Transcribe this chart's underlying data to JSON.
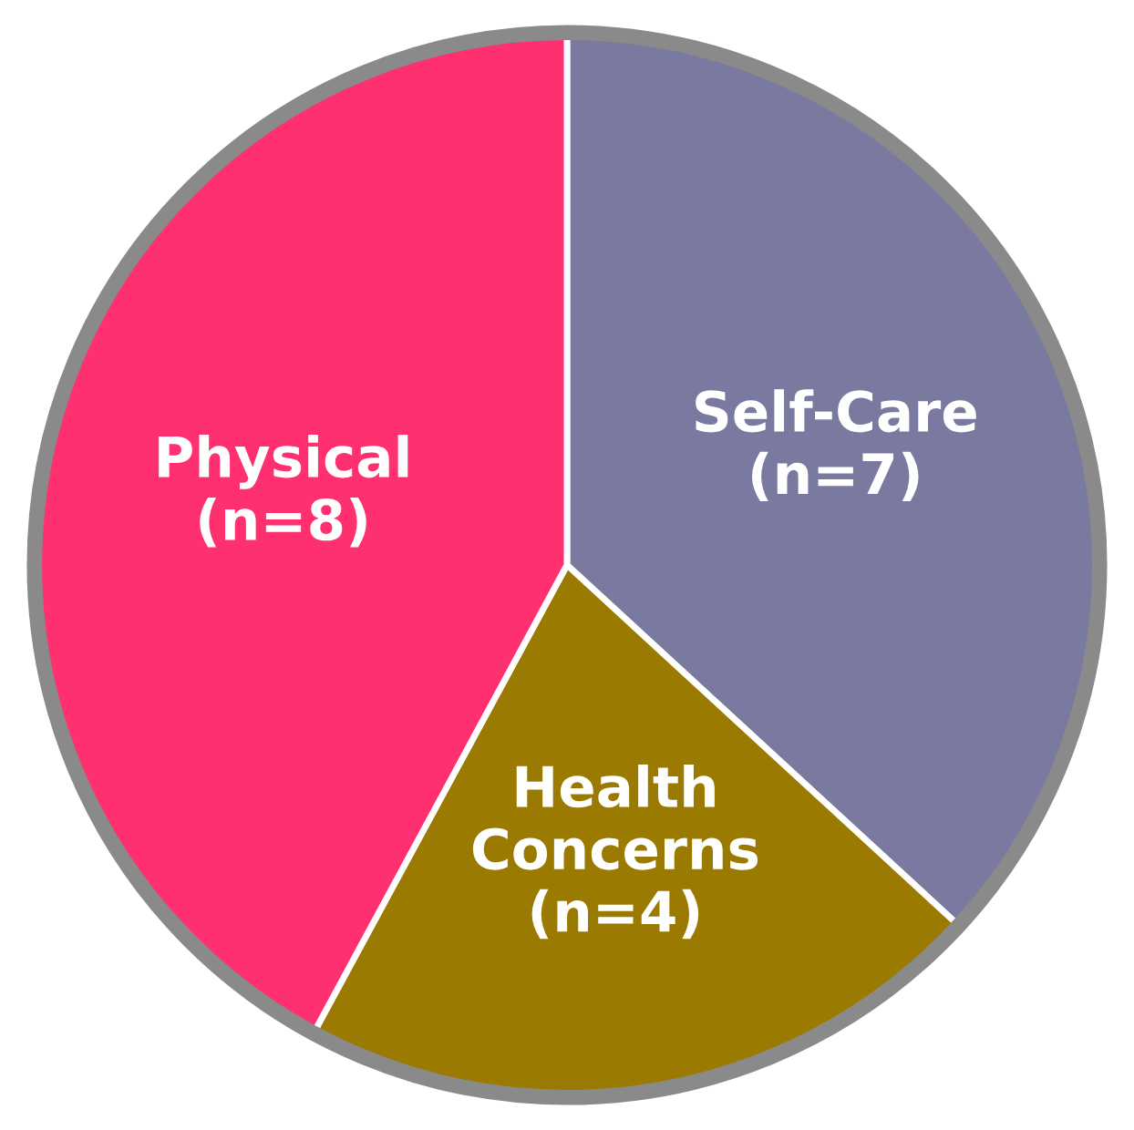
{
  "chart_data": {
    "type": "pie",
    "categories": [
      "Self-Care",
      "Health Concerns",
      "Physical"
    ],
    "values": [
      7,
      4,
      8
    ],
    "colors": [
      "#7a7aa0",
      "#9a7a00",
      "#ff3070"
    ],
    "value_labels": [
      "(n=7)",
      "(n=4)",
      "(n=8)"
    ]
  }
}
